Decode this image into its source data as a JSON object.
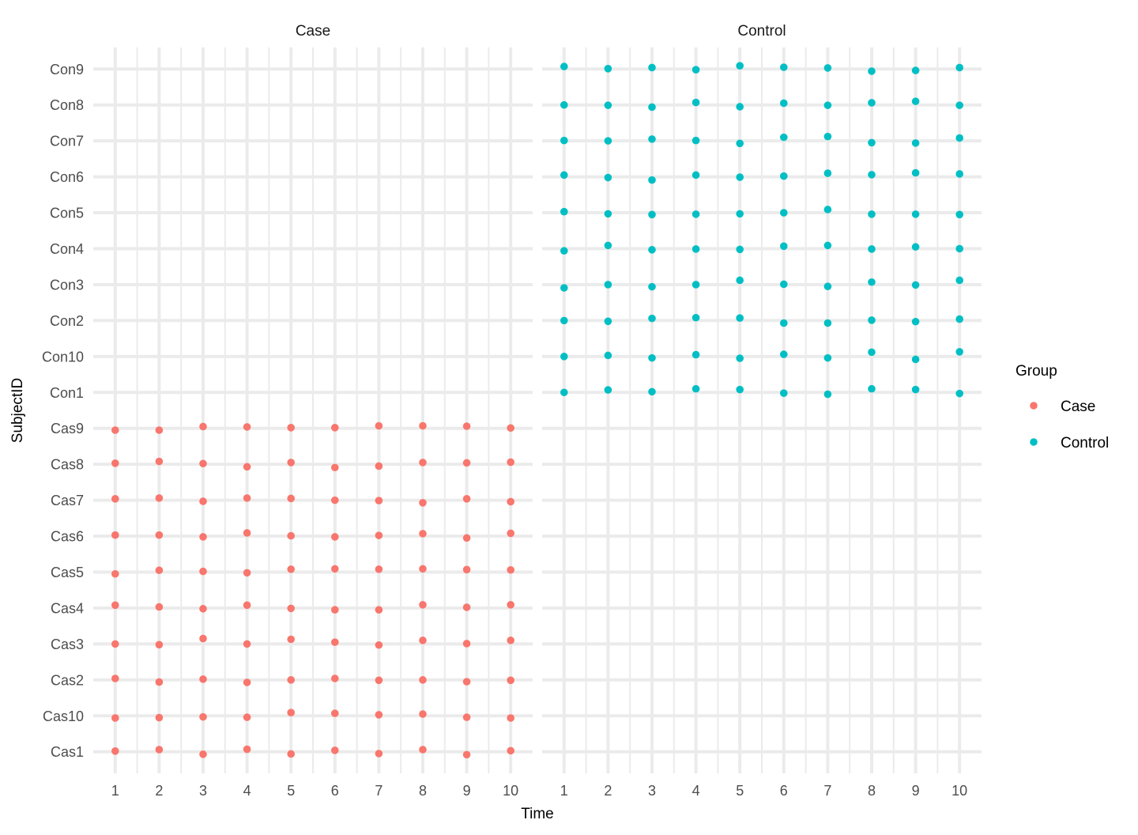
{
  "chart_data": {
    "type": "scatter",
    "facet_by": "Group",
    "xlabel": "Time",
    "ylabel": "SubjectID",
    "x_ticks": [
      1,
      2,
      3,
      4,
      5,
      6,
      7,
      8,
      9,
      10
    ],
    "xlim": [
      0.5,
      10.5
    ],
    "y_categories": [
      "Cas1",
      "Cas10",
      "Cas2",
      "Cas3",
      "Cas4",
      "Cas5",
      "Cas6",
      "Cas7",
      "Cas8",
      "Cas9",
      "Con1",
      "Con10",
      "Con2",
      "Con3",
      "Con4",
      "Con5",
      "Con6",
      "Con7",
      "Con8",
      "Con9"
    ],
    "grid": true,
    "legend": {
      "title": "Group",
      "position": "right",
      "entries": [
        {
          "label": "Case",
          "color": "#f8766d"
        },
        {
          "label": "Control",
          "color": "#00bfc4"
        }
      ]
    },
    "panels": [
      {
        "strip": "Case",
        "color": "#f8766d",
        "subjects": [
          {
            "id": "Cas1",
            "jitter": [
              0.02,
              0.06,
              -0.07,
              0.07,
              -0.06,
              0.04,
              -0.05,
              0.06,
              -0.08,
              0.03
            ]
          },
          {
            "id": "Cas10",
            "jitter": [
              -0.06,
              -0.05,
              -0.03,
              -0.04,
              0.09,
              0.07,
              0.03,
              0.05,
              -0.04,
              -0.06
            ]
          },
          {
            "id": "Cas2",
            "jitter": [
              0.04,
              -0.06,
              0.02,
              -0.07,
              0.0,
              0.04,
              -0.01,
              0.0,
              -0.05,
              -0.01
            ]
          },
          {
            "id": "Cas3",
            "jitter": [
              0.0,
              -0.02,
              0.15,
              0.0,
              0.13,
              0.05,
              -0.03,
              0.1,
              0.01,
              0.1
            ]
          },
          {
            "id": "Cas4",
            "jitter": [
              0.08,
              0.03,
              -0.02,
              0.08,
              -0.01,
              -0.05,
              -0.05,
              0.09,
              0.02,
              0.09
            ]
          },
          {
            "id": "Cas5",
            "jitter": [
              -0.05,
              0.05,
              0.02,
              -0.02,
              0.08,
              0.09,
              0.08,
              0.09,
              0.07,
              0.06
            ]
          },
          {
            "id": "Cas6",
            "jitter": [
              0.03,
              0.03,
              -0.02,
              0.09,
              0.01,
              -0.02,
              0.02,
              0.07,
              -0.05,
              0.08
            ]
          },
          {
            "id": "Cas7",
            "jitter": [
              0.04,
              0.06,
              -0.03,
              0.06,
              0.05,
              0.0,
              -0.01,
              -0.07,
              0.04,
              -0.04
            ]
          },
          {
            "id": "Cas8",
            "jitter": [
              0.03,
              0.08,
              0.02,
              -0.07,
              0.05,
              -0.09,
              -0.05,
              0.05,
              0.04,
              0.06
            ]
          },
          {
            "id": "Cas9",
            "jitter": [
              -0.05,
              -0.05,
              0.05,
              0.04,
              0.02,
              0.02,
              0.07,
              0.07,
              0.06,
              0.01
            ]
          }
        ]
      },
      {
        "strip": "Control",
        "color": "#00bfc4",
        "subjects": [
          {
            "id": "Con1",
            "jitter": [
              0.0,
              0.07,
              0.02,
              0.1,
              0.08,
              -0.02,
              -0.05,
              0.1,
              0.08,
              -0.03
            ]
          },
          {
            "id": "Con10",
            "jitter": [
              0.0,
              0.03,
              -0.04,
              0.05,
              -0.05,
              0.06,
              -0.04,
              0.12,
              -0.08,
              0.13
            ]
          },
          {
            "id": "Con2",
            "jitter": [
              0.0,
              -0.02,
              0.06,
              0.08,
              0.07,
              -0.07,
              -0.07,
              0.01,
              -0.03,
              0.04
            ]
          },
          {
            "id": "Con3",
            "jitter": [
              -0.09,
              0.0,
              -0.06,
              0.0,
              0.12,
              0.01,
              -0.05,
              0.07,
              -0.01,
              0.12
            ]
          },
          {
            "id": "Con4",
            "jitter": [
              -0.06,
              0.09,
              -0.03,
              -0.01,
              -0.02,
              0.07,
              0.09,
              -0.01,
              0.05,
              0.0
            ]
          },
          {
            "id": "Con5",
            "jitter": [
              0.03,
              -0.03,
              -0.05,
              -0.04,
              -0.03,
              0.0,
              0.09,
              -0.04,
              -0.04,
              -0.05
            ]
          },
          {
            "id": "Con6",
            "jitter": [
              0.05,
              -0.02,
              -0.09,
              0.05,
              -0.01,
              0.02,
              0.1,
              0.06,
              0.11,
              0.08
            ]
          },
          {
            "id": "Con7",
            "jitter": [
              0.01,
              0.0,
              0.05,
              0.01,
              -0.07,
              0.1,
              0.12,
              -0.05,
              -0.06,
              0.08
            ]
          },
          {
            "id": "Con8",
            "jitter": [
              0.0,
              -0.01,
              -0.06,
              0.07,
              -0.05,
              0.05,
              -0.01,
              0.06,
              0.1,
              -0.01
            ]
          },
          {
            "id": "Con9",
            "jitter": [
              0.07,
              0.01,
              0.04,
              -0.02,
              0.09,
              0.05,
              0.03,
              -0.06,
              -0.04,
              0.04
            ]
          }
        ]
      }
    ]
  }
}
